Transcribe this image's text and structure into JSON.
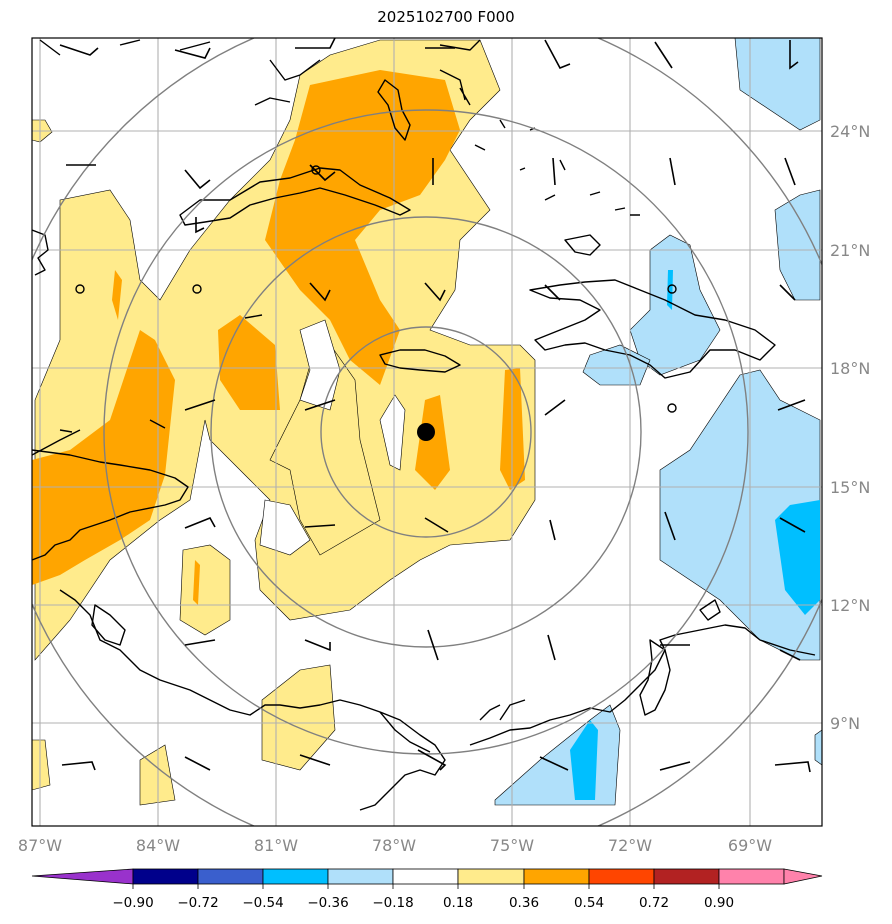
{
  "title": "2025102700 F000",
  "lon_labels": [
    "87°W",
    "84°W",
    "81°W",
    "78°W",
    "75°W",
    "72°W",
    "69°W"
  ],
  "lat_labels": [
    "24°N",
    "21°N",
    "18°N",
    "15°N",
    "12°N",
    "9°N"
  ],
  "colorbar": {
    "ticks": [
      "−0.90",
      "−0.72",
      "−0.54",
      "−0.36",
      "−0.18",
      "0.18",
      "0.36",
      "0.54",
      "0.72",
      "0.90"
    ],
    "colors": [
      "#9932cc",
      "#00008b",
      "#3a5fcd",
      "#00bfff",
      "#b0e0fa",
      "#ffffff",
      "#ffeb8c",
      "#ffa500",
      "#ff4500",
      "#b22222",
      "#ff82ab"
    ]
  },
  "storm_center": {
    "lon": "77.2°W",
    "lat": "16.4°N"
  },
  "colors": {
    "pos_light": "#ffeb8c",
    "pos_medium": "#ffa500",
    "neg_light": "#b0e0fa",
    "neg_medium": "#00bfff",
    "grid": "#b0b0b0",
    "range_rings": "#808080",
    "coast": "#000000"
  }
}
